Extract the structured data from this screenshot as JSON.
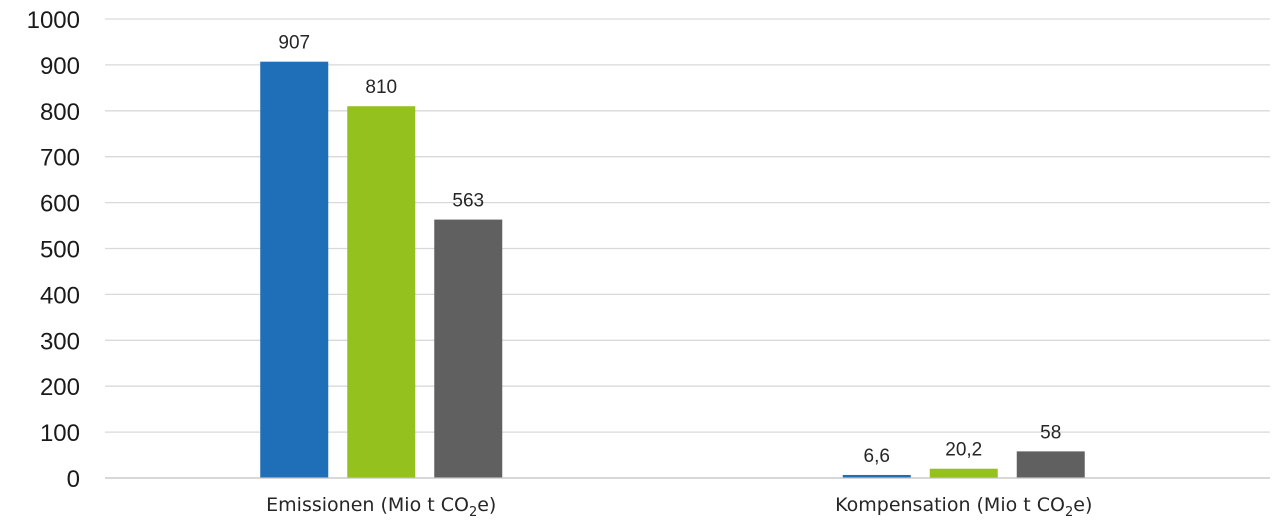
{
  "chart_data": {
    "type": "bar",
    "categories": [
      "Emissionen (Mio t CO₂e)",
      "Kompensation (Mio t CO₂e)"
    ],
    "category_parts": [
      {
        "text": "Emissionen (Mio t CO",
        "sub": "2",
        "tail": "e)"
      },
      {
        "text": "Kompensation (Mio t CO",
        "sub": "2",
        "tail": "e)"
      }
    ],
    "series": [
      {
        "color": "#1f6fb8",
        "values": [
          907,
          6.6
        ],
        "labels": [
          "907",
          "6,6"
        ]
      },
      {
        "color": "#95c11f",
        "values": [
          810,
          20.2
        ],
        "labels": [
          "810",
          "20,2"
        ]
      },
      {
        "color": "#606060",
        "values": [
          563,
          58
        ],
        "labels": [
          "563",
          "58"
        ]
      }
    ],
    "y_ticks": [
      "0",
      "100",
      "200",
      "300",
      "400",
      "500",
      "600",
      "700",
      "800",
      "900",
      "1000"
    ],
    "ylim": [
      0,
      1000
    ],
    "grid": true,
    "legend": "none",
    "title": "",
    "xlabel": "",
    "ylabel": ""
  }
}
